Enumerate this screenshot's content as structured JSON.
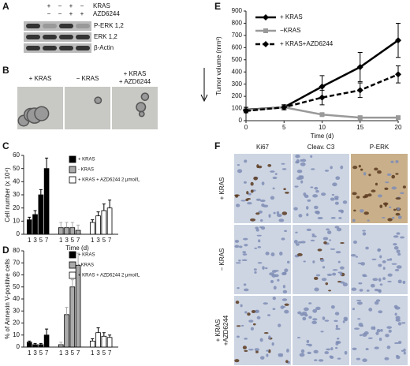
{
  "panels": {
    "A": {
      "label": "A",
      "conditions": [
        {
          "name": "KRAS",
          "signs": [
            "+",
            "−",
            "+",
            "−"
          ]
        },
        {
          "name": "AZD6244",
          "signs": [
            "−",
            "−",
            "+",
            "+"
          ]
        }
      ],
      "blots": [
        "P-ERK 1,2",
        "ERK 1,2",
        "β-Actin"
      ]
    },
    "B": {
      "label": "B",
      "columns": [
        [
          "+ KRAS"
        ],
        [
          "− KRAS"
        ],
        [
          "+ KRAS",
          "+ AZD6244"
        ]
      ]
    },
    "F": {
      "label": "F",
      "columns": [
        "Ki67",
        "Cleav. C3",
        "P-ERK"
      ],
      "rows": [
        [
          "+ KRAS"
        ],
        [
          "− KRAS"
        ],
        [
          "+ KRAS",
          "+AZD6244"
        ]
      ]
    }
  },
  "chart_data": [
    {
      "type": "line",
      "label": "E",
      "ylabel": "Tumor volume (mm³)",
      "xlabel": "Time (d)",
      "x": [
        0,
        5,
        10,
        15,
        20
      ],
      "xlim": [
        0,
        20
      ],
      "xticks": [
        0,
        5,
        10,
        15,
        20
      ],
      "ylim": [
        0,
        900
      ],
      "yticks": [
        0,
        100,
        200,
        300,
        400,
        500,
        600,
        700,
        800,
        900
      ],
      "legend": "upper left",
      "series": [
        {
          "name": "+ KRAS",
          "color": "#000000",
          "marker": "diamond",
          "dashed": false,
          "values": [
            90,
            110,
            280,
            440,
            660
          ],
          "errors": [
            20,
            20,
            90,
            120,
            140
          ]
        },
        {
          "name": "−KRAS",
          "color": "#999999",
          "marker": "square",
          "dashed": false,
          "values": [
            85,
            110,
            50,
            25,
            25
          ],
          "errors": [
            10,
            15,
            10,
            8,
            8
          ]
        },
        {
          "name": "+ KRAS+AZD6244",
          "color": "#000000",
          "marker": "diamond",
          "dashed": true,
          "values": [
            80,
            110,
            190,
            250,
            380
          ],
          "errors": [
            15,
            20,
            60,
            60,
            70
          ]
        }
      ]
    },
    {
      "type": "bar",
      "label": "C",
      "ylabel": "Cell number (x 10⁴)",
      "xlabel": "Time (d)",
      "categories": [
        "1",
        "3",
        "5",
        "7"
      ],
      "ylim": [
        0,
        60
      ],
      "yticks": [
        0,
        10,
        20,
        30,
        40,
        50,
        60
      ],
      "legend": "upper right",
      "series": [
        {
          "name": "+ KRAS",
          "color": "#000000",
          "values": [
            11,
            15,
            30,
            50
          ],
          "errors": [
            2,
            3,
            4,
            8
          ]
        },
        {
          "name": "- KRAS",
          "color": "#aaaaaa",
          "values": [
            5,
            5,
            5,
            3
          ],
          "errors": [
            4,
            4,
            4,
            4
          ]
        },
        {
          "name": "+ KRAS + AZD6244 2 μmol/L",
          "color": "#ffffff",
          "values": [
            9,
            14,
            18,
            20
          ],
          "errors": [
            2,
            3,
            5,
            6
          ]
        }
      ]
    },
    {
      "type": "bar",
      "label": "D",
      "ylabel": "% of Annexin V-positive cells",
      "categories": [
        "1",
        "3",
        "5",
        "7"
      ],
      "ylim": [
        0,
        80
      ],
      "yticks": [
        0,
        10,
        20,
        30,
        40,
        50,
        60,
        70,
        80
      ],
      "legend": "upper right",
      "series": [
        {
          "name": "+ KRAS",
          "color": "#000000",
          "values": [
            4,
            2,
            2,
            10
          ],
          "errors": [
            1,
            1,
            1,
            5
          ]
        },
        {
          "name": "- KRAS",
          "color": "#aaaaaa",
          "values": [
            2,
            27,
            50,
            68
          ],
          "errors": [
            2,
            6,
            6,
            10
          ]
        },
        {
          "name": "+ KRAS + AZD6244 2 μmol/L",
          "color": "#ffffff",
          "values": [
            5,
            12,
            9,
            8
          ],
          "errors": [
            2,
            4,
            3,
            2
          ]
        }
      ]
    }
  ]
}
